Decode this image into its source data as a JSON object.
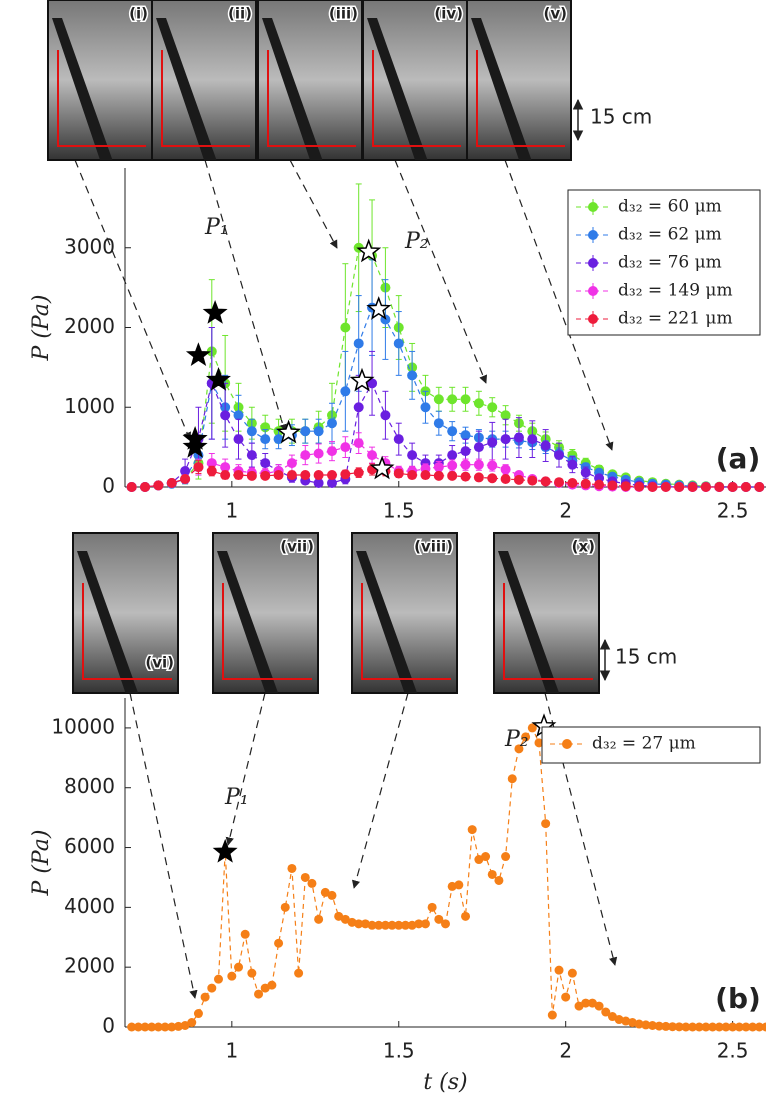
{
  "chart_data": [
    {
      "type": "line",
      "y_label": "P (Pa)",
      "panel_label": "(a)",
      "panels": [
        "(i)",
        "(ii)",
        "(iii)",
        "(iv)",
        "(v)"
      ],
      "scale_label": "15 cm",
      "peak_labels": [
        "P₁",
        "P₂"
      ],
      "xlim": [
        0.68,
        2.6
      ],
      "xticks": [
        1,
        1.5,
        2,
        2.5
      ],
      "ylim": [
        0,
        4000
      ],
      "yticks": [
        0,
        1000,
        2000,
        3000
      ],
      "x": [
        0.7,
        0.74,
        0.78,
        0.82,
        0.86,
        0.9,
        0.94,
        0.98,
        1.02,
        1.06,
        1.1,
        1.14,
        1.18,
        1.22,
        1.26,
        1.3,
        1.34,
        1.38,
        1.42,
        1.46,
        1.5,
        1.54,
        1.58,
        1.62,
        1.66,
        1.7,
        1.74,
        1.78,
        1.82,
        1.86,
        1.9,
        1.94,
        1.98,
        2.02,
        2.06,
        2.1,
        2.14,
        2.18,
        2.22,
        2.26,
        2.3,
        2.34,
        2.38,
        2.42,
        2.46,
        2.5,
        2.54,
        2.58
      ],
      "series": [
        {
          "name": "d₃₂ = 60 μm",
          "color": "#6ee52c",
          "values": [
            0,
            0,
            20,
            50,
            100,
            300,
            1700,
            1300,
            1000,
            800,
            750,
            700,
            700,
            700,
            750,
            900,
            2000,
            3000,
            2900,
            2500,
            2000,
            1500,
            1200,
            1100,
            1100,
            1100,
            1050,
            1000,
            900,
            800,
            700,
            600,
            500,
            400,
            300,
            220,
            160,
            120,
            80,
            60,
            40,
            30,
            20,
            10,
            5,
            0,
            0,
            0
          ],
          "errors": [
            0,
            0,
            10,
            30,
            60,
            200,
            900,
            600,
            300,
            200,
            150,
            150,
            150,
            150,
            200,
            400,
            800,
            800,
            700,
            500,
            400,
            300,
            200,
            150,
            150,
            150,
            150,
            120,
            120,
            100,
            100,
            90,
            80,
            70,
            60,
            50,
            40,
            30,
            20,
            15,
            10,
            10,
            5,
            5,
            0,
            0,
            0,
            0
          ]
        },
        {
          "name": "d₃₂ = 62 μm",
          "color": "#2f7be8",
          "values": [
            0,
            0,
            20,
            40,
            100,
            400,
            1300,
            1000,
            900,
            700,
            600,
            600,
            650,
            700,
            700,
            800,
            1200,
            1800,
            2250,
            2100,
            1800,
            1400,
            1000,
            800,
            700,
            650,
            620,
            600,
            600,
            580,
            560,
            500,
            420,
            330,
            250,
            180,
            130,
            90,
            60,
            40,
            30,
            20,
            10,
            5,
            0,
            0,
            0,
            0
          ],
          "errors": [
            0,
            0,
            10,
            20,
            60,
            250,
            700,
            400,
            250,
            150,
            120,
            120,
            130,
            150,
            150,
            250,
            500,
            600,
            600,
            500,
            400,
            300,
            200,
            150,
            120,
            100,
            100,
            100,
            100,
            90,
            90,
            80,
            70,
            60,
            50,
            40,
            30,
            20,
            15,
            10,
            10,
            5,
            5,
            0,
            0,
            0,
            0,
            0
          ]
        },
        {
          "name": "d₃₂ = 76 μm",
          "color": "#6a1fe0",
          "values": [
            0,
            0,
            20,
            50,
            200,
            600,
            1300,
            900,
            600,
            400,
            300,
            200,
            120,
            80,
            50,
            50,
            100,
            1000,
            1300,
            900,
            600,
            400,
            300,
            300,
            400,
            450,
            500,
            560,
            600,
            620,
            600,
            520,
            400,
            280,
            180,
            110,
            70,
            40,
            20,
            10,
            5,
            0,
            0,
            0,
            0,
            0,
            0,
            0
          ],
          "errors": [
            0,
            0,
            10,
            30,
            150,
            400,
            700,
            400,
            250,
            150,
            120,
            80,
            60,
            40,
            30,
            30,
            60,
            400,
            400,
            300,
            200,
            150,
            100,
            100,
            120,
            150,
            200,
            250,
            250,
            250,
            230,
            200,
            150,
            100,
            70,
            40,
            30,
            20,
            10,
            5,
            0,
            0,
            0,
            0,
            0,
            0,
            0,
            0
          ]
        },
        {
          "name": "d₃₂ = 149 μm",
          "color": "#f032e6",
          "values": [
            0,
            0,
            20,
            50,
            100,
            250,
            300,
            250,
            200,
            180,
            170,
            200,
            300,
            400,
            420,
            450,
            500,
            550,
            400,
            300,
            200,
            200,
            230,
            250,
            270,
            280,
            280,
            270,
            220,
            150,
            100,
            70,
            50,
            30,
            20,
            10,
            5,
            0,
            0,
            0,
            0,
            0,
            0,
            0,
            0,
            0,
            0,
            0
          ],
          "errors": [
            0,
            0,
            10,
            20,
            50,
            100,
            120,
            100,
            80,
            60,
            60,
            80,
            100,
            120,
            120,
            120,
            130,
            130,
            100,
            80,
            60,
            60,
            60,
            70,
            70,
            70,
            70,
            70,
            60,
            40,
            30,
            20,
            15,
            10,
            5,
            5,
            0,
            0,
            0,
            0,
            0,
            0,
            0,
            0,
            0,
            0,
            0,
            0
          ]
        },
        {
          "name": "d₃₂ = 221 μm",
          "color": "#ee1c3c",
          "values": [
            0,
            0,
            20,
            50,
            100,
            250,
            200,
            150,
            150,
            140,
            140,
            150,
            150,
            150,
            150,
            150,
            160,
            180,
            220,
            200,
            170,
            150,
            150,
            140,
            140,
            130,
            120,
            110,
            100,
            90,
            80,
            70,
            60,
            50,
            40,
            30,
            20,
            10,
            5,
            0,
            0,
            0,
            0,
            0,
            0,
            0,
            0,
            0
          ],
          "errors": [
            0,
            0,
            10,
            20,
            40,
            80,
            60,
            50,
            50,
            40,
            40,
            40,
            40,
            40,
            40,
            40,
            50,
            60,
            70,
            60,
            50,
            40,
            40,
            40,
            40,
            30,
            30,
            30,
            30,
            20,
            20,
            20,
            15,
            15,
            10,
            10,
            5,
            5,
            0,
            0,
            0,
            0,
            0,
            0,
            0,
            0,
            0,
            0
          ]
        }
      ],
      "stars": {
        "x": [
          0.89,
          0.89,
          0.9,
          0.95,
          0.96,
          1.17,
          1.41,
          1.44,
          1.39,
          1.45
        ],
        "y": [
          500,
          600,
          1650,
          2180,
          1340,
          680,
          2950,
          2230,
          1330,
          230
        ],
        "filled": [
          true,
          true,
          true,
          true,
          true,
          false,
          false,
          false,
          false,
          false
        ]
      }
    },
    {
      "type": "line",
      "y_label": "P (Pa)",
      "x_label": "t (s)",
      "panel_label": "(b)",
      "panels": [
        "(vi)",
        "(vii)",
        "(viii)",
        "(x)"
      ],
      "scale_label": "15 cm",
      "peak_labels": [
        "P₁",
        "P₂"
      ],
      "xlim": [
        0.68,
        2.6
      ],
      "xticks": [
        1,
        1.5,
        2,
        2.5
      ],
      "ylim": [
        0,
        11000
      ],
      "yticks": [
        0,
        2000,
        4000,
        6000,
        8000,
        10000
      ],
      "x": [
        0.7,
        0.72,
        0.74,
        0.76,
        0.78,
        0.8,
        0.82,
        0.84,
        0.86,
        0.88,
        0.9,
        0.92,
        0.94,
        0.96,
        0.98,
        1.0,
        1.02,
        1.04,
        1.06,
        1.08,
        1.1,
        1.12,
        1.14,
        1.16,
        1.18,
        1.2,
        1.22,
        1.24,
        1.26,
        1.28,
        1.3,
        1.32,
        1.34,
        1.36,
        1.38,
        1.4,
        1.42,
        1.44,
        1.46,
        1.48,
        1.5,
        1.52,
        1.54,
        1.56,
        1.58,
        1.6,
        1.62,
        1.64,
        1.66,
        1.68,
        1.7,
        1.72,
        1.74,
        1.76,
        1.78,
        1.8,
        1.82,
        1.84,
        1.86,
        1.88,
        1.9,
        1.92,
        1.94,
        1.96,
        1.98,
        2.0,
        2.02,
        2.04,
        2.06,
        2.08,
        2.1,
        2.12,
        2.14,
        2.16,
        2.18,
        2.2,
        2.22,
        2.24,
        2.26,
        2.28,
        2.3,
        2.32,
        2.34,
        2.36,
        2.38,
        2.4,
        2.42,
        2.44,
        2.46,
        2.48,
        2.5,
        2.52,
        2.54,
        2.56,
        2.58,
        2.6
      ],
      "series": [
        {
          "name": "d₃₂ = 27 μm",
          "color": "#f57f17",
          "values": [
            0,
            0,
            0,
            0,
            0,
            0,
            0,
            20,
            50,
            150,
            450,
            1000,
            1300,
            1600,
            5850,
            1700,
            2000,
            3100,
            1800,
            1100,
            1300,
            1400,
            2800,
            4000,
            5300,
            1800,
            5000,
            4800,
            3600,
            4500,
            4400,
            3700,
            3600,
            3500,
            3450,
            3450,
            3400,
            3400,
            3400,
            3400,
            3400,
            3400,
            3400,
            3450,
            3450,
            4000,
            3600,
            3450,
            4700,
            4750,
            3700,
            6600,
            5600,
            5700,
            5100,
            4900,
            5700,
            8300,
            9300,
            9700,
            10000,
            9500,
            6800,
            400,
            1900,
            1000,
            1800,
            700,
            800,
            800,
            700,
            500,
            350,
            250,
            200,
            150,
            100,
            70,
            50,
            30,
            20,
            10,
            5,
            0,
            0,
            0,
            0,
            0,
            0,
            0,
            0,
            0,
            0,
            0,
            0,
            0
          ]
        }
      ],
      "stars": {
        "x": [
          0.98,
          1.935
        ],
        "y": [
          5850,
          10050
        ],
        "filled": [
          true,
          false
        ]
      }
    }
  ]
}
